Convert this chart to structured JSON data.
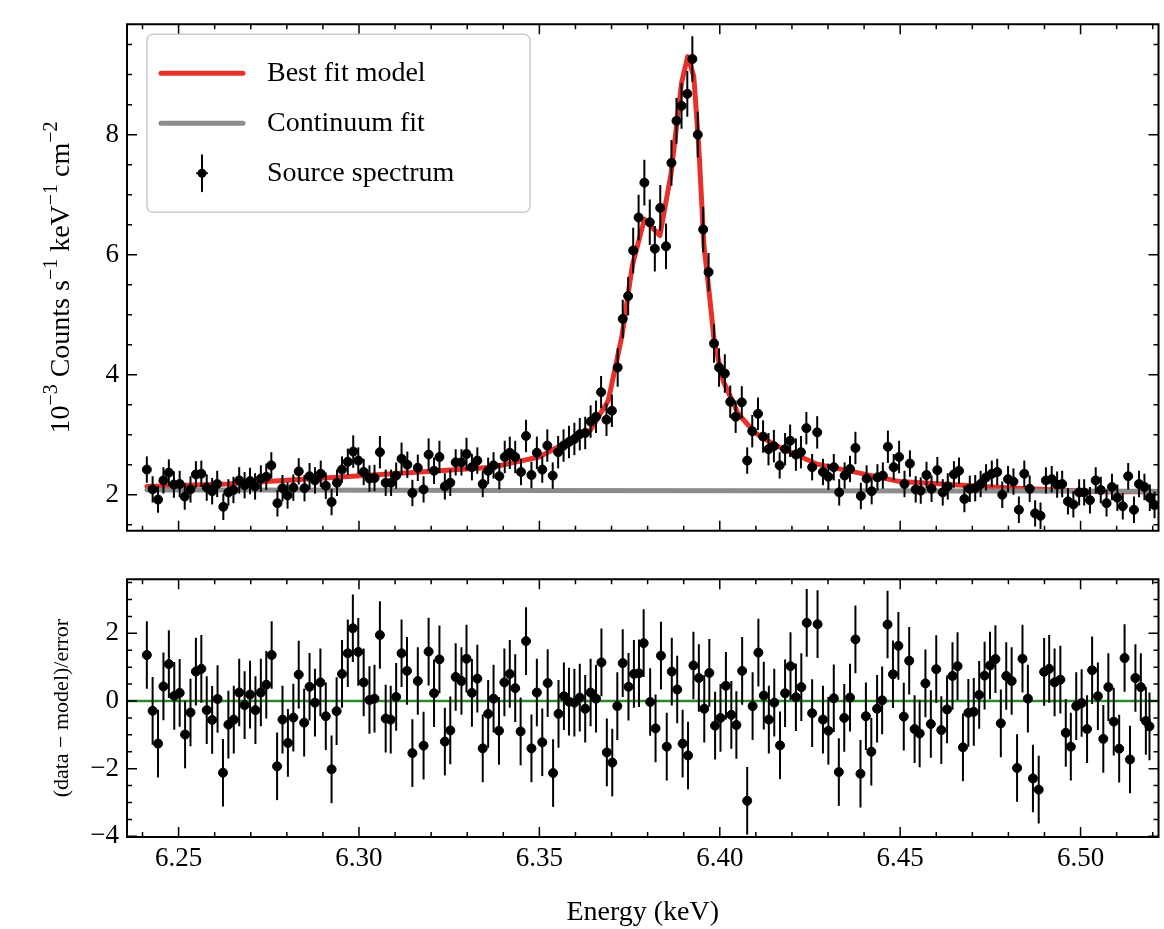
{
  "chart_data": [
    {
      "type": "scatter",
      "ylabel": "10$^{−3}$ Counts s$^{−1}$ keV$^{−1}$ cm$^{−2}$",
      "xlim": [
        6.2357,
        6.5216
      ],
      "ylim": [
        1.4,
        9.84
      ],
      "tick_labels": "y",
      "legend": "top left",
      "grid": false,
      "xticks": [
        {
          "value": 6.24,
          "label": null
        },
        6.25,
        {
          "value": 6.26,
          "label": null
        },
        {
          "value": 6.27,
          "label": null
        },
        {
          "value": 6.28,
          "label": null
        },
        {
          "value": 6.29,
          "label": null
        },
        6.3,
        {
          "value": 6.31,
          "label": null
        },
        {
          "value": 6.32,
          "label": null
        },
        {
          "value": 6.33,
          "label": null
        },
        {
          "value": 6.34,
          "label": null
        },
        6.35,
        {
          "value": 6.36,
          "label": null
        },
        {
          "value": 6.37,
          "label": null
        },
        {
          "value": 6.38,
          "label": null
        },
        {
          "value": 6.39,
          "label": null
        },
        6.4,
        {
          "value": 6.41,
          "label": null
        },
        {
          "value": 6.42,
          "label": null
        },
        {
          "value": 6.43,
          "label": null
        },
        {
          "value": 6.44,
          "label": null
        },
        6.45,
        {
          "value": 6.46,
          "label": null
        },
        {
          "value": 6.47,
          "label": null
        },
        {
          "value": 6.48,
          "label": null
        },
        {
          "value": 6.49,
          "label": null
        },
        6.5,
        {
          "value": 6.51,
          "label": null
        },
        {
          "value": 6.52,
          "label": null
        }
      ],
      "yticks": [
        {
          "value": 1.5,
          "label": null
        },
        2,
        {
          "value": 2.5,
          "label": null
        },
        {
          "value": 3,
          "label": null
        },
        {
          "value": 3.5,
          "label": null
        },
        4,
        {
          "value": 4.5,
          "label": null
        },
        {
          "value": 5,
          "label": null
        },
        {
          "value": 5.5,
          "label": null
        },
        6,
        {
          "value": 6.5,
          "label": null
        },
        {
          "value": 7,
          "label": null
        },
        {
          "value": 7.5,
          "label": null
        },
        8,
        {
          "value": 8.5,
          "label": null
        },
        {
          "value": 9,
          "label": null
        },
        {
          "value": 9.5,
          "label": null
        }
      ],
      "series": [
        {
          "type": "line",
          "name": "Best fit model",
          "color": "#e8312a",
          "x": [
            6.2412,
            6.2635,
            6.2904,
            6.3148,
            6.337,
            6.3499,
            6.3642,
            6.3691,
            6.3729,
            6.3758,
            6.3791,
            6.3834,
            6.3865,
            6.3894,
            6.3911,
            6.3928,
            6.3942,
            6.3956,
            6.3971,
            6.3985,
            6.401,
            6.4051,
            6.4098,
            6.4156,
            6.427,
            6.4499,
            6.4778,
            6.5053,
            6.5209
          ],
          "values": [
            2.14,
            2.18,
            2.28,
            2.37,
            2.46,
            2.63,
            3.08,
            3.57,
            4.65,
            5.83,
            6.59,
            6.32,
            7.35,
            8.86,
            9.3,
            8.97,
            7.78,
            6.16,
            5.35,
            4.54,
            3.89,
            3.35,
            3.03,
            2.82,
            2.51,
            2.22,
            2.12,
            2.05,
            2.05
          ]
        },
        {
          "type": "line",
          "name": "Continuum fit",
          "color": "#8c8c8c",
          "x": [
            6.2412,
            6.5209
          ],
          "values": [
            2.08,
            2.06
          ]
        },
        {
          "type": "scatter",
          "name": "Source spectrum",
          "color": "#000000",
          "marker": "circle",
          "x": [
            6.2412,
            6.2428,
            6.2443,
            6.2458,
            6.2473,
            6.2487,
            6.2503,
            6.2517,
            6.2533,
            6.2548,
            6.2563,
            6.2578,
            6.2593,
            6.2607,
            6.2624,
            6.2638,
            6.2652,
            6.2668,
            6.2683,
            6.2698,
            6.2712,
            6.2728,
            6.2743,
            6.2757,
            6.2774,
            6.2788,
            6.2802,
            6.2818,
            6.2833,
            6.2849,
            6.2863,
            6.2878,
            6.2894,
            6.2908,
            6.2924,
            6.2939,
            6.2953,
            6.2969,
            6.2984,
            6.2998,
            6.3013,
            6.3029,
            6.3043,
            6.3058,
            6.3074,
            6.3089,
            6.3103,
            6.3118,
            6.3134,
            6.3148,
            6.3163,
            6.3179,
            6.3193,
            6.3208,
            6.3223,
            6.3238,
            6.3253,
            6.3268,
            6.3284,
            6.3298,
            6.3313,
            6.3328,
            6.3343,
            6.3358,
            6.3373,
            6.3389,
            6.3404,
            6.3418,
            6.3433,
            6.3449,
            6.3463,
            6.3478,
            6.3493,
            6.3508,
            6.3522,
            6.3537,
            6.3552,
            6.3567,
            6.3582,
            6.3597,
            6.3612,
            6.3627,
            6.3642,
            6.3657,
            6.3671,
            6.3686,
            6.3701,
            6.3717,
            6.3731,
            6.3746,
            6.376,
            6.3775,
            6.3791,
            6.3806,
            6.382,
            6.3835,
            6.3851,
            6.3866,
            6.388,
            6.3894,
            6.391,
            6.3924,
            6.3939,
            6.3954,
            6.3969,
            6.3984,
            6.3998,
            6.4014,
            6.4029,
            6.4044,
            6.4061,
            6.4076,
            6.409,
            6.4106,
            6.412,
            6.4135,
            6.415,
            6.4166,
            6.4181,
            6.4195,
            6.4211,
            6.4225,
            6.424,
            6.4256,
            6.427,
            6.4286,
            6.4301,
            6.4316,
            6.4331,
            6.4346,
            6.4361,
            6.4376,
            6.4391,
            6.4407,
            6.4421,
            6.4437,
            6.4452,
            6.4466,
            6.4482,
            6.4497,
            6.4512,
            6.4527,
            6.4543,
            6.4557,
            6.4573,
            6.4587,
            6.4603,
            6.4618,
            6.4632,
            6.4649,
            6.4663,
            6.4678,
            6.4693,
            6.4708,
            6.4723,
            6.4738,
            6.4754,
            6.4769,
            6.4783,
            6.4799,
            6.4814,
            6.4829,
            6.4844,
            6.4859,
            6.4874,
            6.4889,
            6.4904,
            6.492,
            6.4935,
            6.4949,
            6.4965,
            6.498,
            6.4996,
            6.501,
            6.5026,
            6.5042,
            6.5056,
            6.5072,
            6.5087,
            6.5102,
            6.5117,
            6.5132,
            6.5148,
            6.5162,
            6.5177,
            6.5192,
            6.5205
          ],
          "values": [
            2.42,
            2.09,
            1.92,
            2.24,
            2.37,
            2.17,
            2.18,
            1.97,
            2.09,
            2.34,
            2.35,
            2.12,
            2.06,
            2.18,
            1.8,
            2.04,
            2.08,
            2.24,
            2.16,
            2.23,
            2.14,
            2.27,
            2.3,
            2.49,
            1.86,
            2.11,
            1.99,
            2.12,
            2.39,
            2.11,
            2.31,
            2.24,
            2.35,
            2.15,
            1.88,
            2.2,
            2.42,
            2.55,
            2.72,
            2.57,
            2.38,
            2.27,
            2.28,
            2.71,
            2.2,
            2.2,
            2.32,
            2.6,
            2.5,
            2.03,
            2.45,
            2.09,
            2.67,
            2.4,
            2.63,
            2.14,
            2.2,
            2.54,
            2.54,
            2.68,
            2.46,
            2.57,
            2.18,
            2.4,
            2.49,
            2.31,
            2.63,
            2.7,
            2.63,
            2.38,
            2.98,
            2.33,
            2.7,
            2.42,
            2.82,
            2.32,
            2.71,
            2.82,
            2.88,
            2.93,
            3.01,
            3.03,
            3.22,
            3.3,
            3.71,
            3.25,
            3.4,
            4.12,
            4.93,
            5.31,
            6.07,
            6.62,
            7.2,
            6.54,
            6.1,
            6.78,
            6.14,
            7.53,
            8.23,
            8.48,
            8.68,
            9.26,
            8,
            6.42,
            5.71,
            4.52,
            4.12,
            4.02,
            3.55,
            3.3,
            3.54,
            2.57,
            3.06,
            3.35,
            2.97,
            2.76,
            2.81,
            2.49,
            2.76,
            2.9,
            2.67,
            2.71,
            3.11,
            2.46,
            3.04,
            2.38,
            2.3,
            2.46,
            2.04,
            2.32,
            2.43,
            2.78,
            1.98,
            2.27,
            2.06,
            2.29,
            2.32,
            2.8,
            2.46,
            2.63,
            2.18,
            2.52,
            2.09,
            2.07,
            2.33,
            2.1,
            2.41,
            2.04,
            2.14,
            2.34,
            2.4,
            1.93,
            2.1,
            2.11,
            2.18,
            2.29,
            2.35,
            2.38,
            2,
            2.26,
            2.22,
            1.75,
            2.35,
            2.1,
            1.69,
            1.65,
            2.24,
            2.26,
            2.17,
            2.18,
            1.89,
            1.84,
            2.04,
            2.04,
            1.91,
            2.24,
            2.08,
            1.86,
            2.13,
            1.95,
            1.81,
            2.31,
            1.75,
            2.18,
            2.13,
            1.95,
            1.83
          ],
          "errors": [
            0.22,
            0.22,
            0.22,
            0.22,
            0.22,
            0.22,
            0.22,
            0.22,
            0.22,
            0.22,
            0.22,
            0.22,
            0.22,
            0.22,
            0.22,
            0.22,
            0.22,
            0.22,
            0.22,
            0.22,
            0.22,
            0.22,
            0.22,
            0.22,
            0.22,
            0.22,
            0.22,
            0.22,
            0.22,
            0.22,
            0.22,
            0.22,
            0.22,
            0.22,
            0.22,
            0.22,
            0.22,
            0.22,
            0.27,
            0.22,
            0.22,
            0.22,
            0.22,
            0.27,
            0.22,
            0.22,
            0.22,
            0.27,
            0.22,
            0.22,
            0.22,
            0.22,
            0.27,
            0.22,
            0.27,
            0.22,
            0.22,
            0.22,
            0.22,
            0.27,
            0.22,
            0.22,
            0.22,
            0.22,
            0.22,
            0.22,
            0.27,
            0.27,
            0.27,
            0.22,
            0.27,
            0.22,
            0.27,
            0.22,
            0.27,
            0.22,
            0.27,
            0.27,
            0.27,
            0.27,
            0.27,
            0.27,
            0.27,
            0.27,
            0.27,
            0.27,
            0.27,
            0.32,
            0.32,
            0.32,
            0.38,
            0.38,
            0.38,
            0.38,
            0.38,
            0.38,
            0.38,
            0.38,
            0.38,
            0.38,
            0.38,
            0.38,
            0.38,
            0.38,
            0.32,
            0.32,
            0.32,
            0.32,
            0.27,
            0.27,
            0.27,
            0.22,
            0.27,
            0.27,
            0.27,
            0.27,
            0.27,
            0.22,
            0.27,
            0.27,
            0.27,
            0.27,
            0.27,
            0.22,
            0.27,
            0.22,
            0.22,
            0.22,
            0.22,
            0.22,
            0.22,
            0.27,
            0.22,
            0.22,
            0.22,
            0.22,
            0.22,
            0.27,
            0.22,
            0.27,
            0.22,
            0.22,
            0.22,
            0.22,
            0.22,
            0.22,
            0.22,
            0.22,
            0.22,
            0.22,
            0.22,
            0.22,
            0.22,
            0.22,
            0.22,
            0.22,
            0.22,
            0.22,
            0.22,
            0.22,
            0.22,
            0.22,
            0.22,
            0.22,
            0.22,
            0.22,
            0.22,
            0.22,
            0.22,
            0.22,
            0.22,
            0.22,
            0.22,
            0.22,
            0.22,
            0.22,
            0.22,
            0.22,
            0.22,
            0.22,
            0.22,
            0.22,
            0.22,
            0.22,
            0.22,
            0.22,
            0.22
          ]
        }
      ]
    },
    {
      "type": "scatter",
      "xlabel": "Energy (keV)",
      "ylabel": "(data − model)/error",
      "xlim": [
        6.2357,
        6.5216
      ],
      "ylim": [
        -4.02,
        3.6
      ],
      "grid": false,
      "xticks": [
        {
          "value": 6.24,
          "label": null
        },
        {
          "value": 6.25,
          "label": "6.25"
        },
        {
          "value": 6.26,
          "label": null
        },
        {
          "value": 6.27,
          "label": null
        },
        {
          "value": 6.28,
          "label": null
        },
        {
          "value": 6.29,
          "label": null
        },
        {
          "value": 6.3,
          "label": "6.30"
        },
        {
          "value": 6.31,
          "label": null
        },
        {
          "value": 6.32,
          "label": null
        },
        {
          "value": 6.33,
          "label": null
        },
        {
          "value": 6.34,
          "label": null
        },
        {
          "value": 6.35,
          "label": "6.35"
        },
        {
          "value": 6.36,
          "label": null
        },
        {
          "value": 6.37,
          "label": null
        },
        {
          "value": 6.38,
          "label": null
        },
        {
          "value": 6.39,
          "label": null
        },
        {
          "value": 6.4,
          "label": "6.40"
        },
        {
          "value": 6.41,
          "label": null
        },
        {
          "value": 6.42,
          "label": null
        },
        {
          "value": 6.43,
          "label": null
        },
        {
          "value": 6.44,
          "label": null
        },
        {
          "value": 6.45,
          "label": "6.45"
        },
        {
          "value": 6.46,
          "label": null
        },
        {
          "value": 6.47,
          "label": null
        },
        {
          "value": 6.48,
          "label": null
        },
        {
          "value": 6.49,
          "label": null
        },
        {
          "value": 6.5,
          "label": "6.50"
        },
        {
          "value": 6.51,
          "label": null
        },
        {
          "value": 6.52,
          "label": null
        }
      ],
      "yticks": [
        {
          "value": -4,
          "label": "−4"
        },
        {
          "value": -3.5,
          "label": null
        },
        {
          "value": -3,
          "label": null
        },
        {
          "value": -2.5,
          "label": null
        },
        {
          "value": -2,
          "label": "−2"
        },
        {
          "value": -1.5,
          "label": null
        },
        {
          "value": -1,
          "label": null
        },
        {
          "value": -0.5,
          "label": null
        },
        0,
        {
          "value": 0.5,
          "label": null
        },
        {
          "value": 1,
          "label": null
        },
        {
          "value": 1.5,
          "label": null
        },
        2,
        {
          "value": 2.5,
          "label": null
        },
        {
          "value": 3,
          "label": null
        },
        {
          "value": 3.5,
          "label": null
        }
      ],
      "ref_lines": [
        {
          "axis": "y",
          "value": 0,
          "color": "#2a8a2a"
        }
      ],
      "series": [
        {
          "type": "scatter",
          "color": "#000000",
          "marker": "circle",
          "x": [
            6.2412,
            6.2428,
            6.2443,
            6.2458,
            6.2473,
            6.2488,
            6.2503,
            6.2518,
            6.2533,
            6.2548,
            6.2563,
            6.2578,
            6.2593,
            6.2608,
            6.2623,
            6.2638,
            6.2653,
            6.2668,
            6.2683,
            6.2698,
            6.2713,
            6.2728,
            6.2743,
            6.2758,
            6.2773,
            6.2788,
            6.2803,
            6.2818,
            6.2833,
            6.2848,
            6.2863,
            6.2878,
            6.2893,
            6.2908,
            6.2924,
            6.2938,
            6.2953,
            6.2969,
            6.2983,
            6.2998,
            6.3013,
            6.3029,
            6.3043,
            6.3058,
            6.3074,
            6.3088,
            6.3103,
            6.3118,
            6.3133,
            6.3148,
            6.3163,
            6.3179,
            6.3193,
            6.3208,
            6.3223,
            6.3238,
            6.3253,
            6.3268,
            6.3284,
            6.3298,
            6.3313,
            6.3328,
            6.3343,
            6.3358,
            6.3373,
            6.3388,
            6.3403,
            6.3418,
            6.3433,
            6.3448,
            6.3463,
            6.3478,
            6.3493,
            6.3508,
            6.3523,
            6.3538,
            6.3553,
            6.3568,
            6.3582,
            6.3597,
            6.3612,
            6.3627,
            6.3642,
            6.3657,
            6.3672,
            6.3687,
            6.3702,
            6.3716,
            6.3731,
            6.3747,
            6.3762,
            6.3776,
            6.3789,
            6.3807,
            6.3822,
            6.3837,
            6.3853,
            6.3867,
            6.3882,
            6.3897,
            6.3912,
            6.3927,
            6.3942,
            6.3957,
            6.3971,
            6.3987,
            6.4002,
            6.4017,
            6.4032,
            6.4046,
            6.4062,
            6.4076,
            6.4091,
            6.4107,
            6.4122,
            6.4136,
            6.4151,
            6.4167,
            6.4181,
            6.4196,
            6.4211,
            6.4226,
            6.4241,
            6.4256,
            6.4271,
            6.4286,
            6.4301,
            6.4316,
            6.433,
            6.4345,
            6.4361,
            6.4376,
            6.439,
            6.4405,
            6.442,
            6.4436,
            6.445,
            6.4465,
            6.448,
            6.4495,
            6.451,
            6.4525,
            6.454,
            6.4554,
            6.457,
            6.4585,
            6.46,
            6.4614,
            6.463,
            6.4645,
            6.4659,
            6.4674,
            6.4689,
            6.4704,
            6.4719,
            6.4734,
            6.4749,
            6.4764,
            6.4779,
            6.4794,
            6.4809,
            6.4824,
            6.4839,
            6.4854,
            6.4868,
            6.4884,
            6.4899,
            6.4913,
            6.4928,
            6.4944,
            6.4959,
            6.4973,
            6.4988,
            6.5003,
            6.5018,
            6.5032,
            6.5048,
            6.5063,
            6.5077,
            6.5092,
            6.5107,
            6.5122,
            6.5137,
            6.5152,
            6.5167,
            6.5181,
            6.5191
          ],
          "values": [
            1.36,
            -0.29,
            -1.26,
            0.43,
            1.09,
            0.15,
            0.24,
            -0.99,
            -0.34,
            0.87,
            0.95,
            -0.27,
            -0.56,
            0.06,
            -2.12,
            -0.7,
            -0.55,
            0.25,
            -0.12,
            0.19,
            -0.27,
            0.25,
            0.48,
            1.36,
            -1.93,
            -0.55,
            -1.24,
            -0.49,
            0.78,
            -0.64,
            0.42,
            -0.05,
            0.55,
            -0.45,
            -2.02,
            -0.3,
            0.8,
            1.41,
            2.15,
            1.45,
            0.55,
            0.03,
            0.07,
            1.95,
            -0.52,
            -0.55,
            0.12,
            1.41,
            0.89,
            -1.54,
            0.59,
            -1.32,
            1.46,
            0.23,
            1.23,
            -1.2,
            -0.87,
            0.71,
            0.59,
            1.25,
            0.24,
            0.66,
            -1.4,
            -0.38,
            0.07,
            -0.88,
            0.55,
            0.8,
            0.38,
            -0.9,
            1.77,
            -1.4,
            0.25,
            -1.22,
            0.53,
            -2.13,
            -0.38,
            0.14,
            -0.02,
            -0.05,
            0.1,
            -0.23,
            0.25,
            0.07,
            1.14,
            -1.52,
            -1.82,
            -0.15,
            1.12,
            0.42,
            0.8,
            0.82,
            1.71,
            -0.03,
            -0.81,
            1.34,
            -1.35,
            0.87,
            0.34,
            -1.26,
            -1.61,
            1.05,
            0.68,
            -0.23,
            0.83,
            -0.73,
            -0.5,
            0.45,
            -0.41,
            -0.71,
            0.89,
            -2.95,
            -0.15,
            1.43,
            0.16,
            -0.55,
            -0.05,
            -1.31,
            0.23,
            1.03,
            0.11,
            0.41,
            2.31,
            -0.36,
            2.27,
            -0.55,
            -0.88,
            0.08,
            -2.1,
            -0.5,
            0.1,
            1.82,
            -2.15,
            -0.45,
            -1.5,
            -0.23,
            0.02,
            2.26,
            0.79,
            1.63,
            -0.46,
            1.19,
            -0.83,
            -0.96,
            0.52,
            -0.68,
            0.94,
            -0.86,
            -0.25,
            0.74,
            1.03,
            -1.37,
            -0.35,
            -0.32,
            0.18,
            0.75,
            1.05,
            1.24,
            -0.66,
            0.74,
            0.59,
            -1.98,
            1.25,
            0.07,
            -2.29,
            -2.62,
            0.86,
            0.95,
            0.55,
            0.63,
            -0.94,
            -1.35,
            -0.15,
            -0.06,
            -0.83,
            0.91,
            0.14,
            -1.12,
            0.41,
            -0.61,
            -1.41,
            1.27,
            -1.73,
            0.68,
            0.41,
            -0.59,
            -0.75
          ],
          "errors": [
            1,
            1,
            1,
            1,
            1,
            1,
            1,
            1,
            1,
            1,
            1,
            1,
            1,
            1,
            1,
            1,
            1,
            1,
            1,
            1,
            1,
            1,
            1,
            1,
            1,
            1,
            1,
            1,
            1,
            1,
            1,
            1,
            1,
            1,
            1,
            1,
            1,
            1,
            1,
            1,
            1,
            1,
            1,
            1,
            1,
            1,
            1,
            1,
            1,
            1,
            1,
            1,
            1,
            1,
            1,
            1,
            1,
            1,
            1,
            1,
            1,
            1,
            1,
            1,
            1,
            1,
            1,
            1,
            1,
            1,
            1,
            1,
            1,
            1,
            1,
            1,
            1,
            1,
            1,
            1,
            1,
            1,
            1,
            1,
            1,
            1,
            1,
            1,
            1,
            1,
            1,
            1,
            1,
            1,
            1,
            1,
            1,
            1,
            1,
            1,
            1,
            1,
            1,
            1,
            1,
            1,
            1,
            1,
            1,
            1,
            1,
            1,
            1,
            1,
            1,
            1,
            1,
            1,
            1,
            1,
            1,
            1,
            1,
            1,
            1,
            1,
            1,
            1,
            1,
            1,
            1,
            1,
            1,
            1,
            1,
            1,
            1,
            1,
            1,
            1,
            1,
            1,
            1,
            1,
            1,
            1,
            1,
            1,
            1,
            1,
            1,
            1,
            1,
            1,
            1,
            1,
            1,
            1,
            1,
            1,
            1,
            1,
            1,
            1,
            1,
            1,
            1,
            1,
            1,
            1,
            1,
            1,
            1,
            1,
            1,
            1,
            1,
            1,
            1,
            1,
            1,
            1,
            1,
            1,
            1,
            1,
            1
          ]
        }
      ]
    }
  ]
}
